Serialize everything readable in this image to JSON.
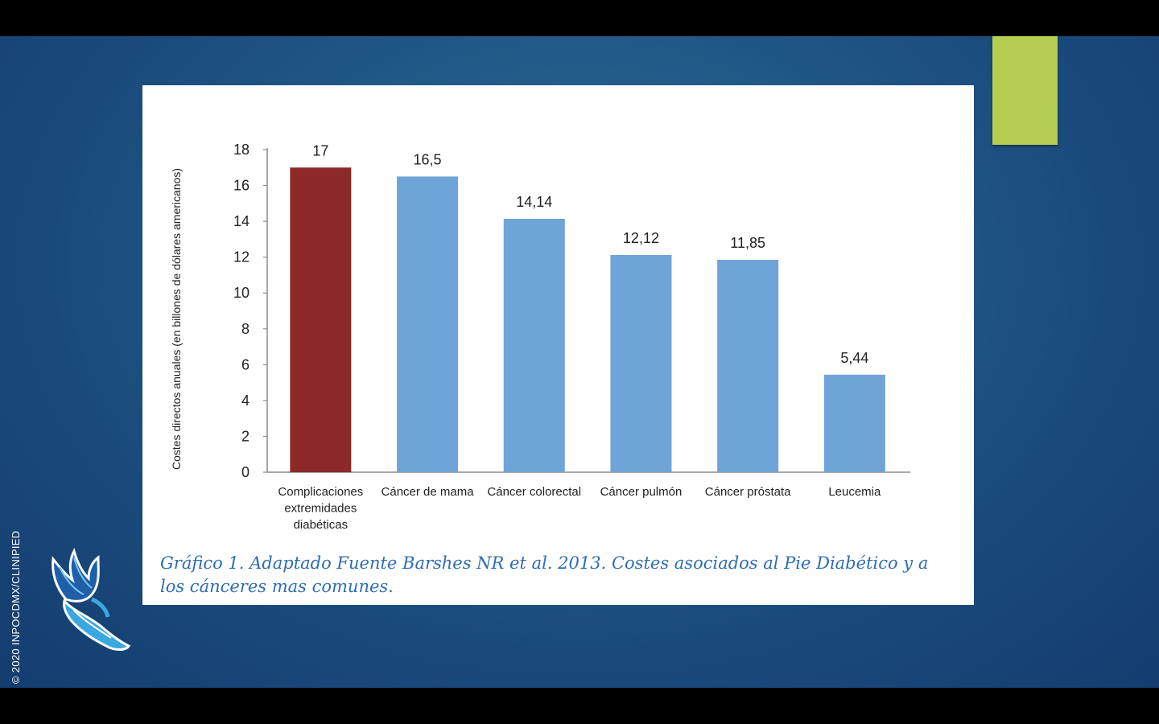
{
  "slide": {
    "copyright": "© 2020 INPOCDMX/CLINIPIED",
    "caption": "Gráfico 1. Adaptado Fuente Barshes NR et al. 2013. Costes asociados al Pie Diabético y a los cánceres mas comunes.",
    "logo_icon": "winged-foot-icon",
    "colors": {
      "accent": "#b5cd51",
      "highlight_bar": "#8b2929",
      "bar": "#6fa4d8",
      "caption": "#2e6db5"
    }
  },
  "chart_data": {
    "type": "bar",
    "categories": [
      [
        "Complicaciones",
        "extremidades",
        "diabéticas"
      ],
      [
        "Cáncer de mama"
      ],
      [
        "Cáncer colorectal"
      ],
      [
        "Cáncer pulmón"
      ],
      [
        "Cáncer próstata"
      ],
      [
        "Leucemia"
      ]
    ],
    "values": [
      17,
      16.5,
      14.14,
      12.12,
      11.85,
      5.44
    ],
    "value_labels": [
      "17",
      "16,5",
      "14,14",
      "12,12",
      "11,85",
      "5,44"
    ],
    "bar_colors": [
      "#8b2929",
      "#6fa4d8",
      "#6fa4d8",
      "#6fa4d8",
      "#6fa4d8",
      "#6fa4d8"
    ],
    "ylabel": "Costes directos anuales (en billones de dólares americanos)",
    "xlabel": "",
    "ylim": [
      0,
      18
    ],
    "yticks": [
      0,
      2,
      4,
      6,
      8,
      10,
      12,
      14,
      16,
      18
    ],
    "grid": false,
    "legend": "none"
  }
}
